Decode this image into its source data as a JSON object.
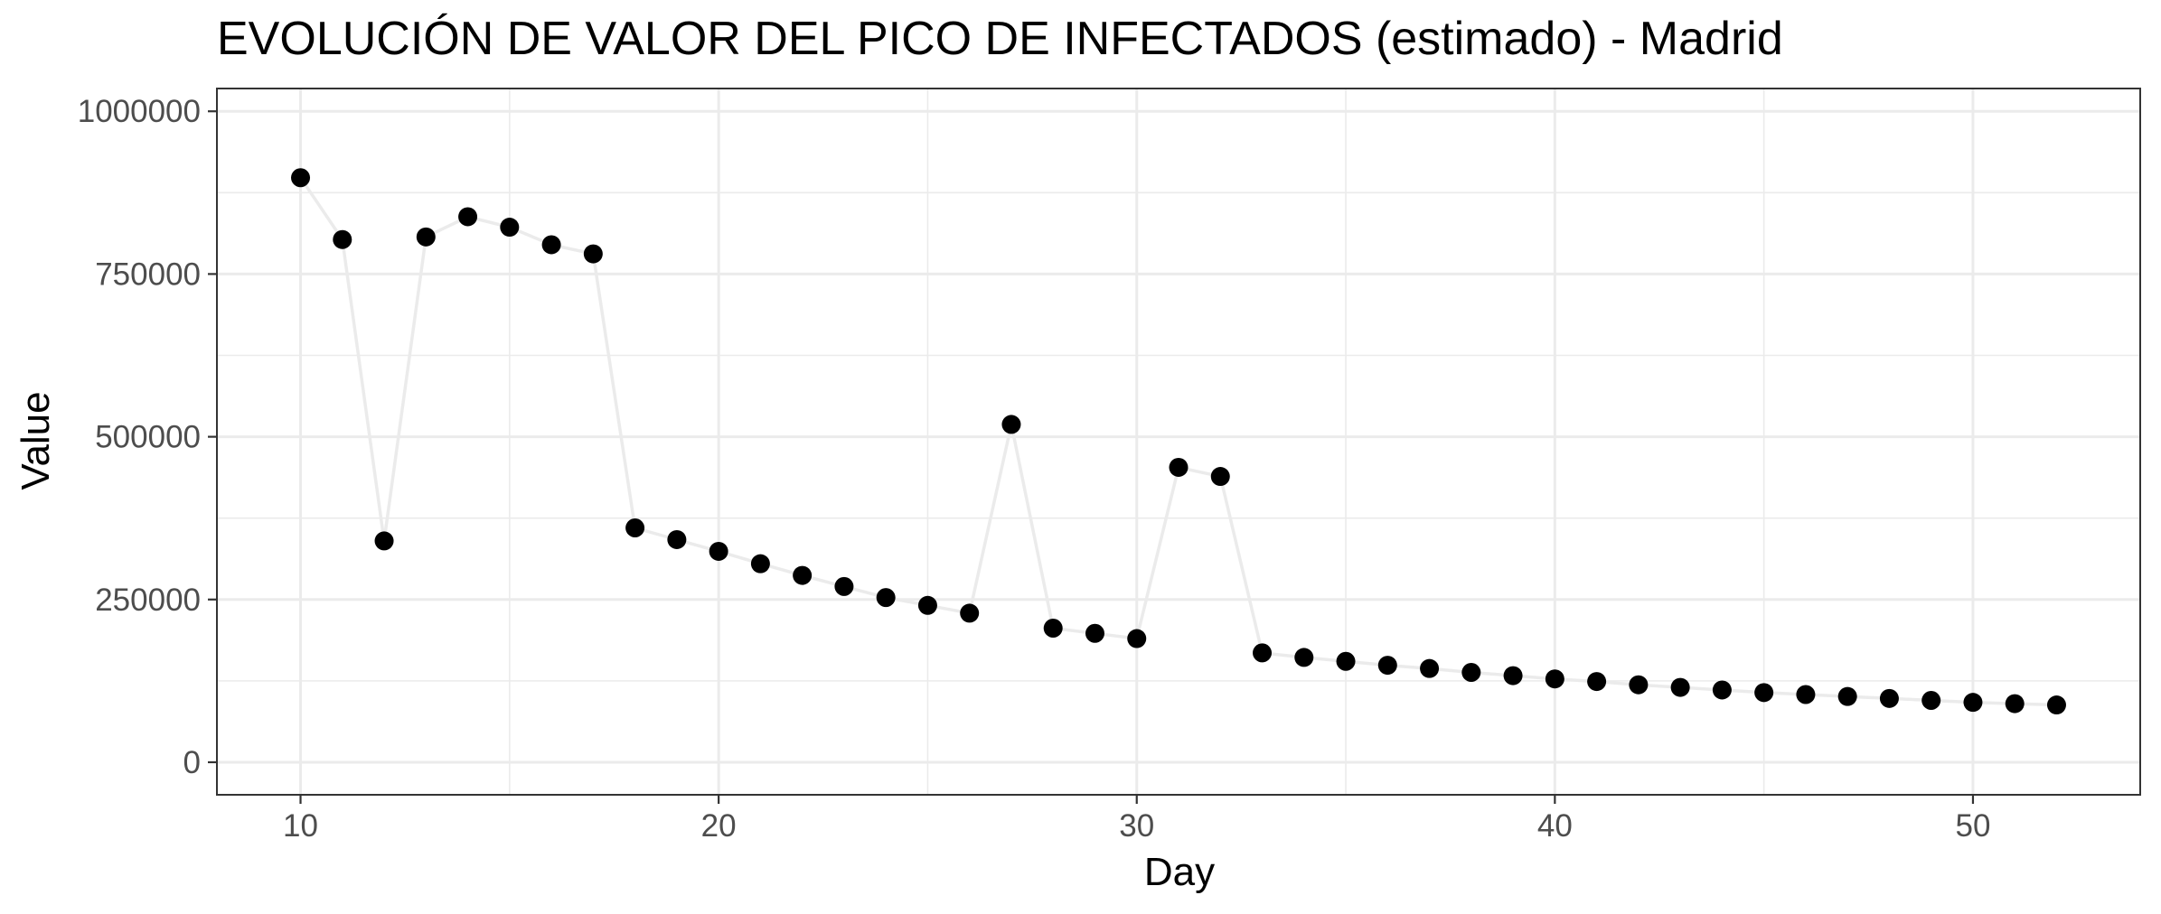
{
  "chart_data": {
    "type": "scatter",
    "title": "EVOLUCIÓN DE VALOR DEL PICO DE INFECTADOS (estimado) - Madrid",
    "xlabel": "Day",
    "ylabel": "Value",
    "xlim": [
      8,
      54
    ],
    "ylim": [
      -50000,
      1035000
    ],
    "x_ticks": [
      10,
      20,
      30,
      40,
      50
    ],
    "x_tick_labels": [
      "10",
      "20",
      "30",
      "40",
      "50"
    ],
    "y_ticks": [
      0,
      250000,
      500000,
      750000,
      1000000
    ],
    "y_tick_labels": [
      "0",
      "250000",
      "500000",
      "750000",
      "1000000"
    ],
    "grid": true,
    "connecting_line": true,
    "colors": {
      "points": "#000000",
      "line": "#ebebeb",
      "grid": "#ebebeb",
      "border": "#333333"
    },
    "series": [
      {
        "x": [
          10,
          11,
          12,
          13,
          14,
          15,
          16,
          17,
          18,
          19,
          20,
          21,
          22,
          23,
          24,
          25,
          26,
          27,
          28,
          29,
          30,
          31,
          32,
          33,
          34,
          35,
          36,
          37,
          38,
          39,
          40,
          41,
          42,
          43,
          44,
          45,
          46,
          47,
          48,
          49,
          50,
          51,
          52
        ],
        "y": [
          898000,
          803000,
          340000,
          807000,
          838000,
          822000,
          795000,
          781000,
          360000,
          342000,
          324000,
          305000,
          287000,
          270000,
          253000,
          241000,
          229000,
          519000,
          206000,
          198000,
          190000,
          453000,
          439000,
          168000,
          161000,
          155000,
          149000,
          144000,
          138000,
          133000,
          128000,
          124000,
          119000,
          115000,
          111000,
          107000,
          104000,
          101000,
          98000,
          95000,
          92000,
          90000,
          88000
        ]
      }
    ]
  }
}
